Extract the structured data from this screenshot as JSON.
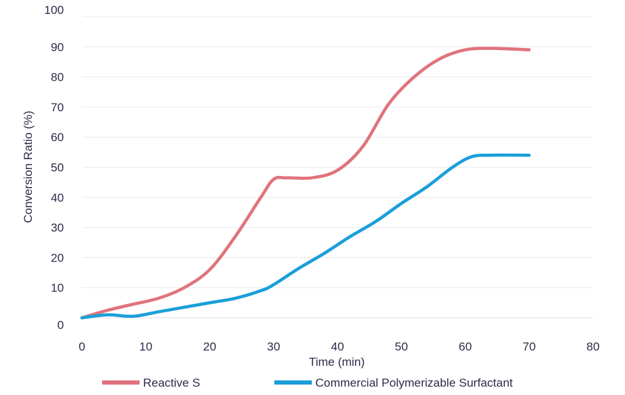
{
  "chart_data": {
    "type": "line",
    "title": "",
    "xlabel": "Time (min)",
    "ylabel": "Conversion Ratio (%)",
    "xlim": [
      0,
      80
    ],
    "ylim": [
      0,
      100
    ],
    "x_ticks": [
      0,
      10,
      20,
      30,
      40,
      50,
      60,
      70,
      80
    ],
    "y_ticks": [
      0,
      10,
      20,
      30,
      40,
      50,
      60,
      70,
      80,
      90,
      100
    ],
    "grid": "horizontal",
    "legend_position": "bottom",
    "series": [
      {
        "name": "Reactive S",
        "color": "#e0737c",
        "x": [
          0,
          4,
          8,
          12,
          16,
          20,
          24,
          28,
          30,
          32,
          36,
          40,
          44,
          48,
          52,
          56,
          60,
          64,
          70
        ],
        "y": [
          0,
          2.5,
          4.5,
          6.5,
          10,
          16,
          27,
          40,
          46,
          46.5,
          46.5,
          49,
          57,
          71,
          80,
          86,
          89,
          89.5,
          89
        ]
      },
      {
        "name": "Commercial Polymerizable Surfactant",
        "color": "#1a9fd9",
        "x": [
          0,
          4,
          8,
          12,
          16,
          20,
          24,
          28,
          30,
          34,
          38,
          42,
          46,
          50,
          54,
          58,
          61,
          64,
          70
        ],
        "y": [
          0,
          1,
          0.5,
          2,
          3.5,
          5,
          6.5,
          9,
          11,
          16.5,
          21.5,
          27,
          32,
          38,
          43.5,
          50,
          53.5,
          54,
          54
        ]
      }
    ]
  }
}
